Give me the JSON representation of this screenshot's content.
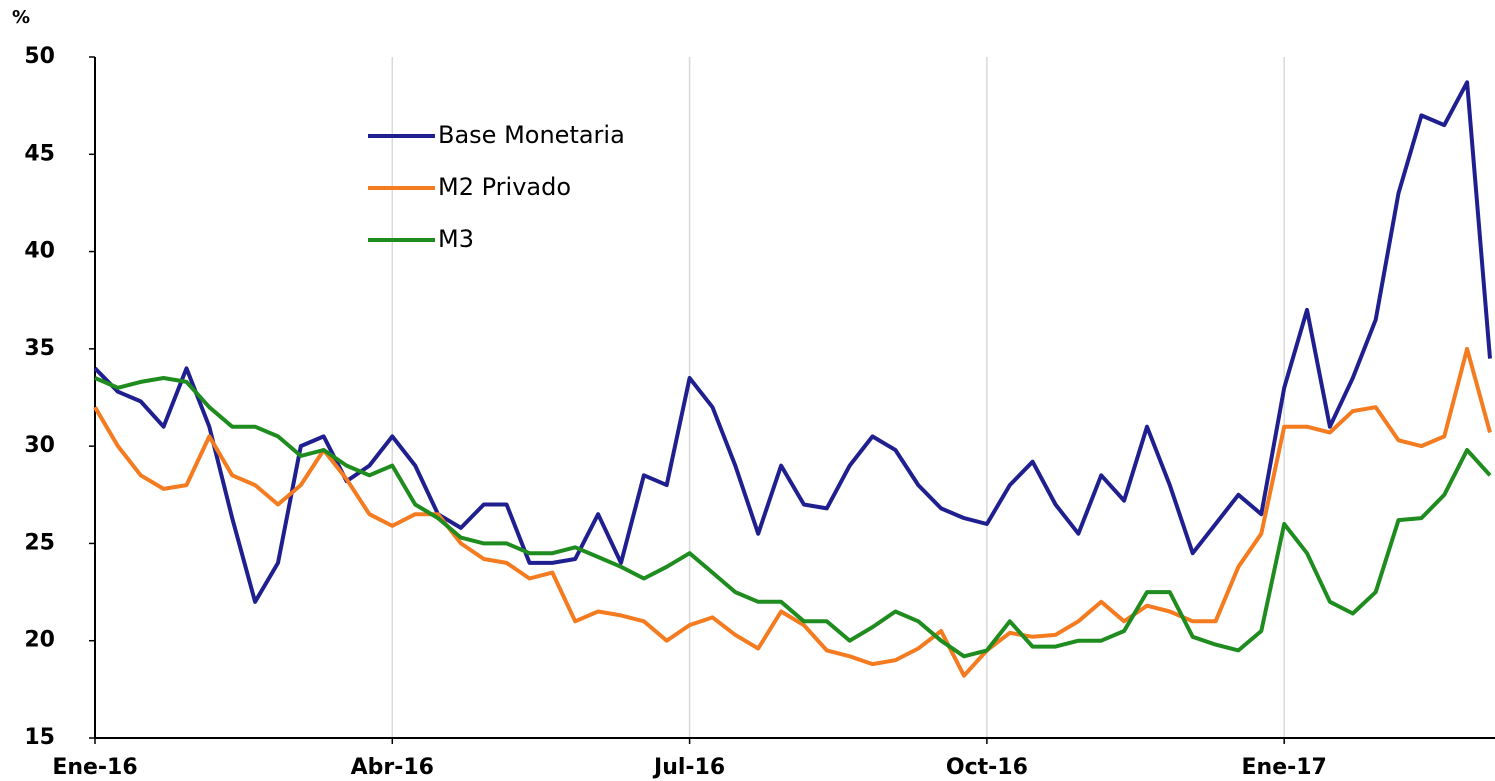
{
  "chart_data": {
    "type": "line",
    "y_label": "%",
    "categories": [
      "Ene-16",
      null,
      null,
      null,
      null,
      null,
      null,
      null,
      null,
      null,
      null,
      null,
      null,
      "Abr-16",
      null,
      null,
      null,
      null,
      null,
      null,
      null,
      null,
      null,
      null,
      null,
      null,
      "Jul-16",
      null,
      null,
      null,
      null,
      null,
      null,
      null,
      null,
      null,
      null,
      null,
      null,
      "Oct-16",
      null,
      null,
      null,
      null,
      null,
      null,
      null,
      null,
      null,
      null,
      null,
      null,
      "Ene-17",
      null,
      null,
      null,
      null,
      null,
      null,
      null,
      null,
      null
    ],
    "series": [
      {
        "name": "Base Monetaria",
        "color": "#1f1f8f",
        "values": [
          34,
          32.8,
          32.3,
          31,
          34,
          31,
          26.3,
          22,
          24,
          30,
          30.5,
          28.2,
          29,
          30.5,
          29,
          26.5,
          25.8,
          27,
          27,
          24,
          24,
          24.2,
          26.5,
          24,
          28.5,
          28,
          33.5,
          32,
          29,
          25.5,
          29,
          27,
          26.8,
          29,
          30.5,
          29.8,
          28,
          26.8,
          26.3,
          26,
          28,
          29.2,
          27,
          25.5,
          28.5,
          27.2,
          31,
          28,
          24.5,
          26,
          27.5,
          26.5,
          33,
          37,
          31,
          33.5,
          36.5,
          43,
          47,
          46.5,
          48.7,
          34.5
        ]
      },
      {
        "name": "M2 Privado",
        "color": "#f47b20",
        "values": [
          32,
          30,
          28.5,
          27.8,
          28,
          30.5,
          28.5,
          28,
          27,
          28,
          29.8,
          28.3,
          26.5,
          25.9,
          26.5,
          26.5,
          25,
          24.2,
          24,
          23.2,
          23.5,
          21,
          21.5,
          21.3,
          21,
          20,
          20.8,
          21.2,
          20.3,
          19.6,
          21.5,
          20.8,
          19.5,
          19.2,
          18.8,
          19,
          19.6,
          20.5,
          18.2,
          19.5,
          20.4,
          20.2,
          20.3,
          21,
          22,
          21,
          21.8,
          21.5,
          21,
          21,
          23.8,
          25.5,
          31,
          31,
          30.7,
          31.8,
          32,
          30.3,
          30,
          30.5,
          35,
          30.7
        ]
      },
      {
        "name": "M3",
        "color": "#1e8c1e",
        "values": [
          33.5,
          33,
          33.3,
          33.5,
          33.3,
          32,
          31,
          31,
          30.5,
          29.5,
          29.8,
          29,
          28.5,
          29,
          27,
          26.3,
          25.3,
          25,
          25,
          24.5,
          24.5,
          24.8,
          24.3,
          23.8,
          23.2,
          23.8,
          24.5,
          23.5,
          22.5,
          22,
          22,
          21,
          21,
          20,
          20.7,
          21.5,
          21,
          20,
          19.2,
          19.5,
          21,
          19.7,
          19.7,
          20,
          20,
          20.5,
          22.5,
          22.5,
          20.2,
          19.8,
          19.5,
          20.5,
          26,
          24.5,
          22,
          21.4,
          22.5,
          26.2,
          26.3,
          27.5,
          29.8,
          28.5
        ]
      }
    ],
    "ylim": [
      15,
      50
    ],
    "yticks": [
      15,
      20,
      25,
      30,
      35,
      40,
      45,
      50
    ],
    "grid": true
  }
}
